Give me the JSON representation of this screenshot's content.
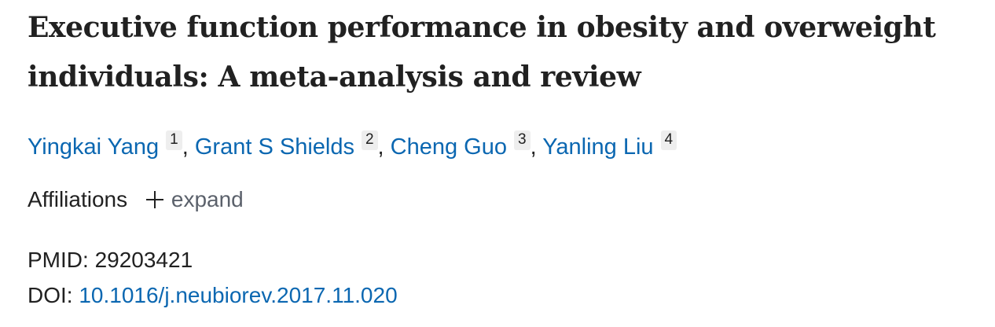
{
  "article": {
    "title_line1": "Executive function performance in obesity and overweight",
    "title_line2": "individuals: A meta-analysis and review",
    "authors": [
      {
        "name": "Yingkai Yang",
        "affiliation": "1"
      },
      {
        "name": "Grant S Shields",
        "affiliation": "2"
      },
      {
        "name": "Cheng Guo",
        "affiliation": "3"
      },
      {
        "name": "Yanling Liu",
        "affiliation": "4"
      }
    ],
    "author_separator": ",",
    "affiliations_label": "Affiliations",
    "expand_label": "expand",
    "pmid_label": "PMID:",
    "pmid_value": "29203421",
    "doi_label": "DOI:",
    "doi_value": "10.1016/j.neubiorev.2017.11.020"
  },
  "colors": {
    "link": "#0b67b1",
    "text": "#212121",
    "muted": "#5b616b",
    "badge_bg": "#eeeeee"
  },
  "icons": {
    "expand": "plus-icon"
  }
}
